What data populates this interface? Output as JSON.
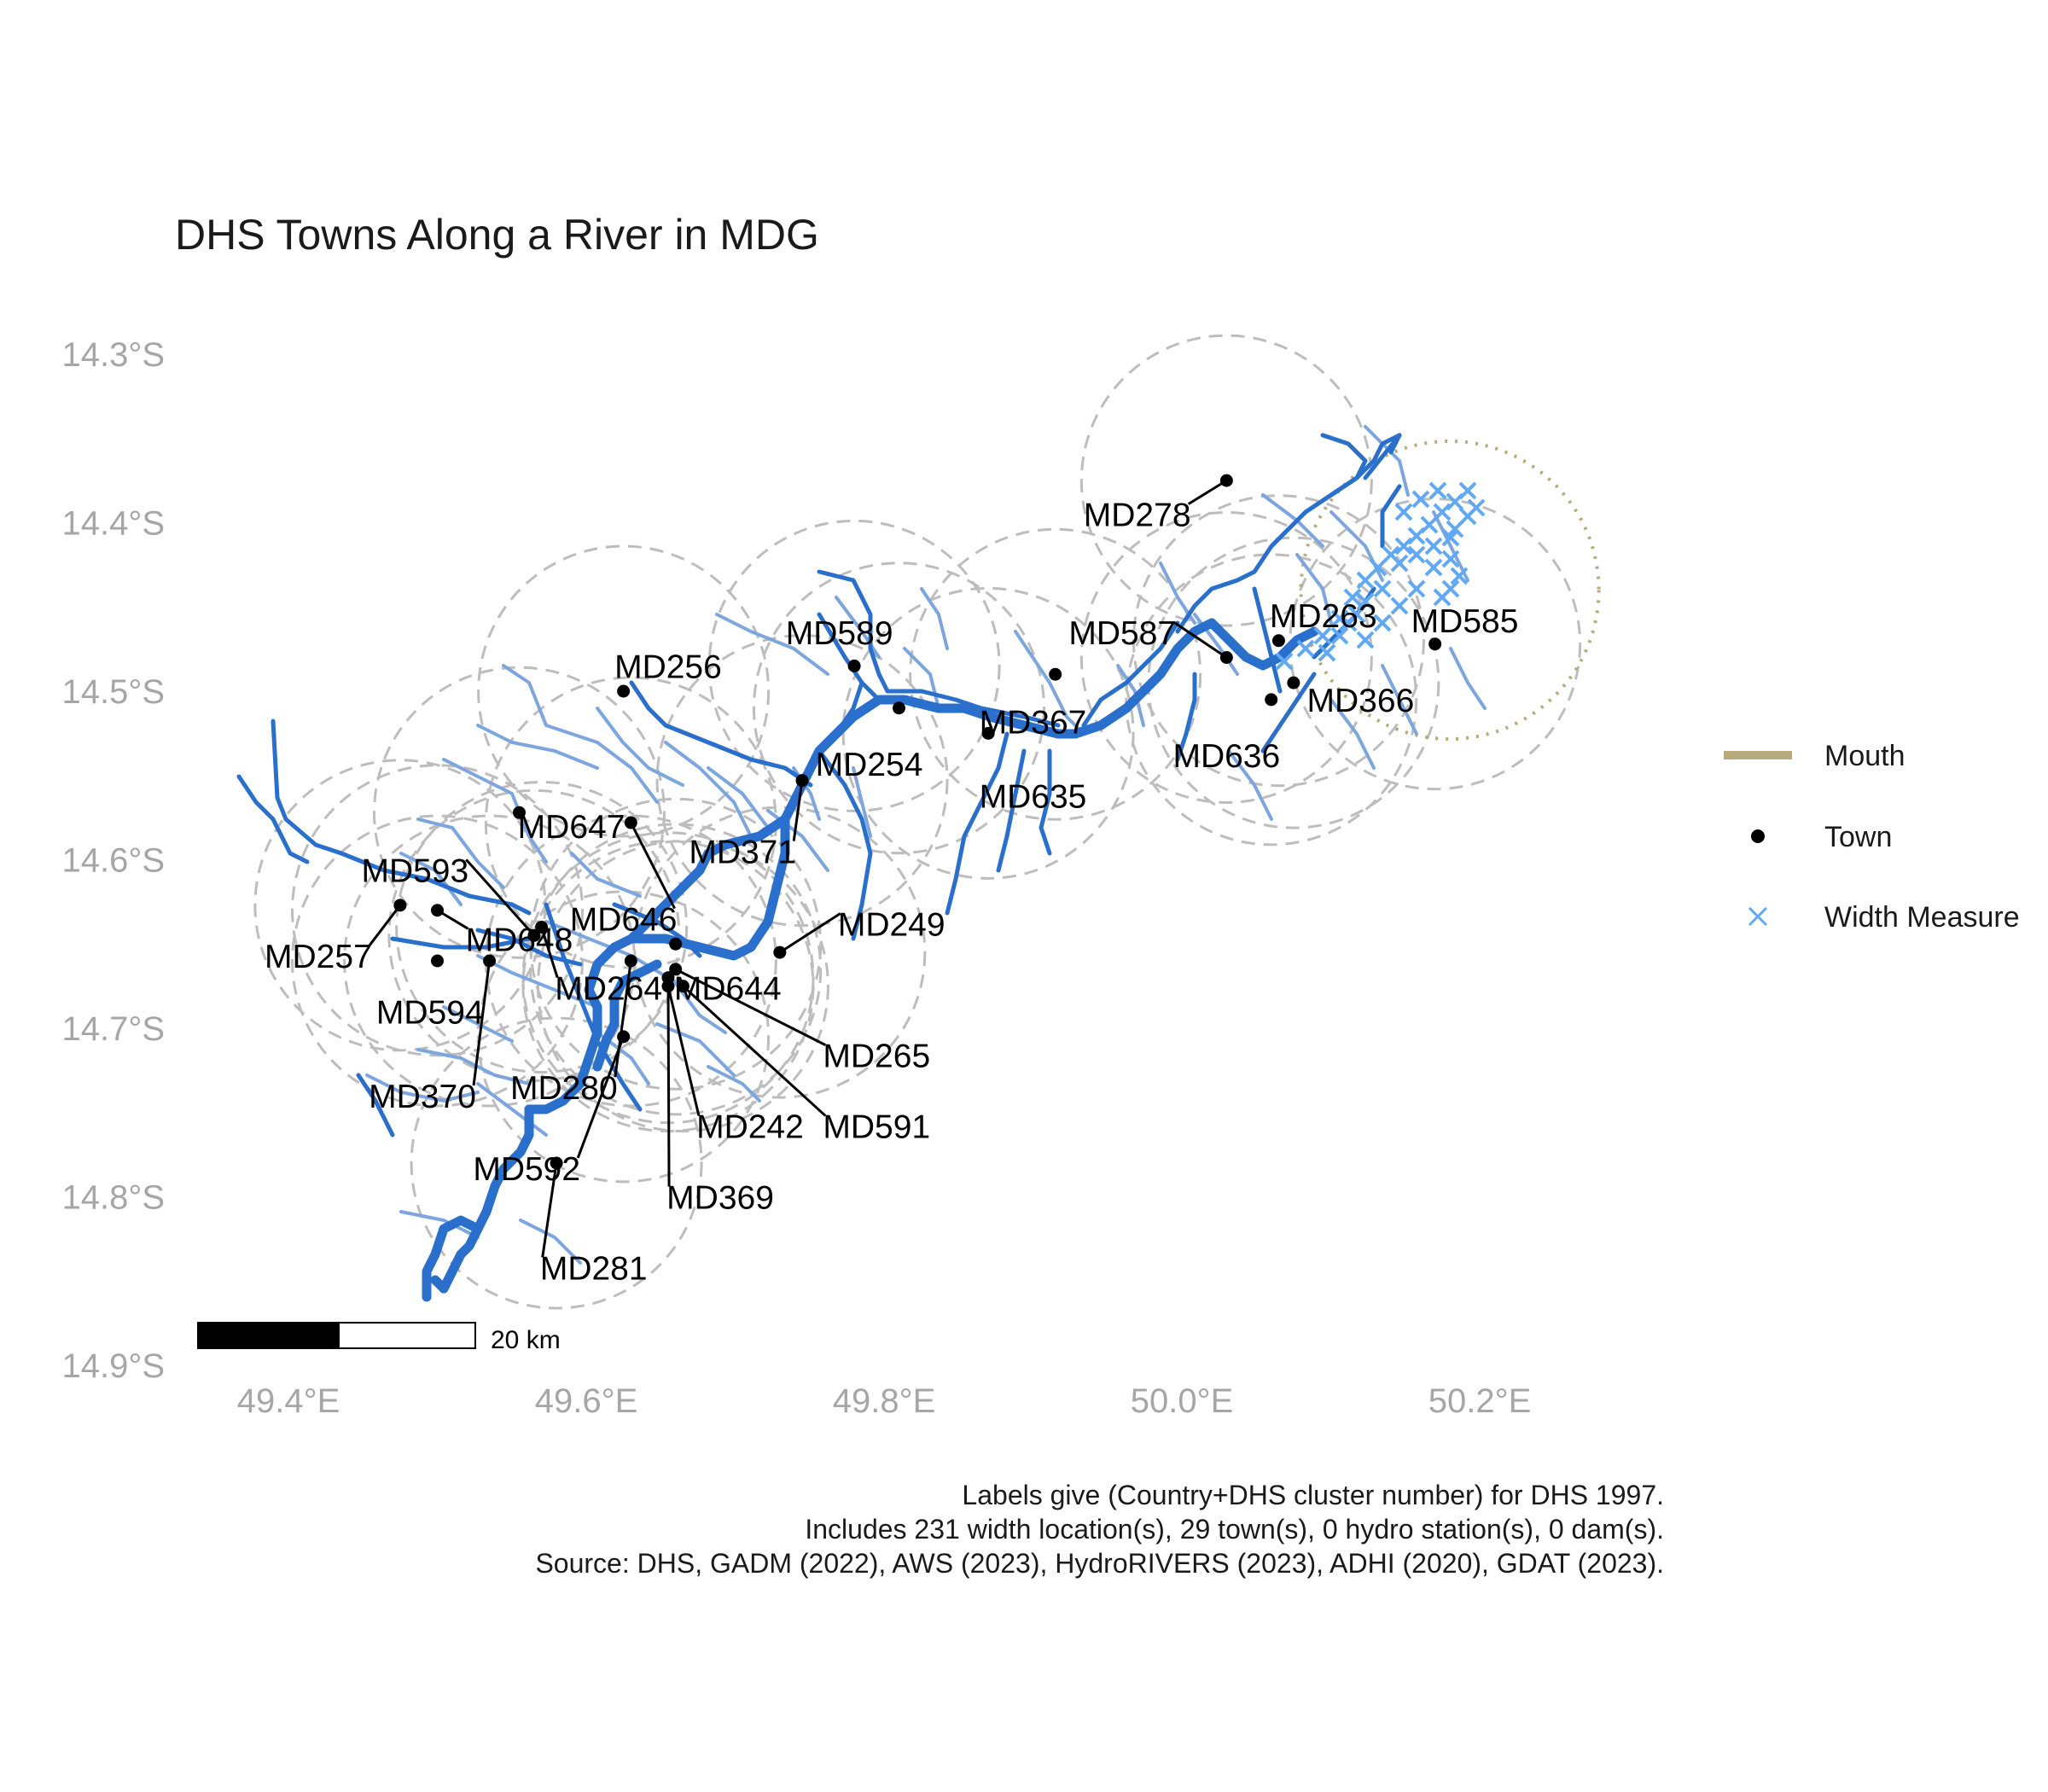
{
  "title": "DHS Towns Along a River in MDG",
  "axes": {
    "lat_ticks": [
      {
        "value": -14.3,
        "label": "14.3°S"
      },
      {
        "value": -14.4,
        "label": "14.4°S"
      },
      {
        "value": -14.5,
        "label": "14.5°S"
      },
      {
        "value": -14.6,
        "label": "14.6°S"
      },
      {
        "value": -14.7,
        "label": "14.7°S"
      },
      {
        "value": -14.8,
        "label": "14.8°S"
      },
      {
        "value": -14.9,
        "label": "14.9°S"
      }
    ],
    "lon_ticks": [
      {
        "value": 49.4,
        "label": "49.4°E"
      },
      {
        "value": 49.6,
        "label": "49.6°E"
      },
      {
        "value": 49.8,
        "label": "49.8°E"
      },
      {
        "value": 50.0,
        "label": "50.0°E"
      },
      {
        "value": 50.2,
        "label": "50.2°E"
      }
    ],
    "lon_range": [
      49.35,
      50.28
    ],
    "lat_range": [
      -14.9,
      -14.28
    ]
  },
  "legend": {
    "items": [
      {
        "key": "mouth",
        "label": "Mouth"
      },
      {
        "key": "town",
        "label": "Town"
      },
      {
        "key": "width",
        "label": "Width Measure"
      }
    ]
  },
  "scalebar": {
    "label": "20 km"
  },
  "caption": {
    "line1": "Labels give (Country+DHS cluster number) for DHS 1997.",
    "line2": "Includes 231 width location(s), 29 town(s), 0 hydro station(s), 0 dam(s).",
    "line3": "Source: DHS, GADM (2022), AWS (2023), HydroRIVERS (2023), ADHI (2020), GDAT (2023)."
  },
  "colors": {
    "river_main": "#2a6fcc",
    "river_trib": "#7ea6de",
    "width_measure": "#61a8f5",
    "mouth": "#b8aa7a",
    "buffer": "#bdbdbd",
    "town": "#000000"
  },
  "mouth": {
    "lon": 50.18,
    "lat": -14.44,
    "radius_deg": 0.1
  },
  "towns": [
    {
      "name": "MD278",
      "lon": 50.03,
      "lat": -14.375,
      "label_lon": 49.97,
      "label_lat": -14.395
    },
    {
      "name": "MD587",
      "lon": 50.03,
      "lat": -14.48,
      "label_lon": 49.96,
      "label_lat": -14.465
    },
    {
      "name": "MD263",
      "lon": 50.065,
      "lat": -14.47,
      "label_lon": 50.095,
      "label_lat": -14.455
    },
    {
      "name": "MD585",
      "lon": 50.17,
      "lat": -14.472,
      "label_lon": 50.19,
      "label_lat": -14.458
    },
    {
      "name": "MD366",
      "lon": 50.075,
      "lat": -14.495,
      "label_lon": 50.12,
      "label_lat": -14.505
    },
    {
      "name": "MD636",
      "lon": 50.06,
      "lat": -14.505,
      "label_lon": 50.03,
      "label_lat": -14.538
    },
    {
      "name": "MD589",
      "lon": 49.78,
      "lat": -14.485,
      "label_lon": 49.77,
      "label_lat": -14.465
    },
    {
      "name": "MD256",
      "lon": 49.625,
      "lat": -14.5,
      "label_lon": 49.655,
      "label_lat": -14.485
    },
    {
      "name": "MD367",
      "lon": 49.915,
      "lat": -14.49,
      "label_lon": 49.9,
      "label_lat": -14.518
    },
    {
      "name": "MD254",
      "lon": 49.81,
      "lat": -14.51,
      "label_lon": 49.79,
      "label_lat": -14.543
    },
    {
      "name": "MD635",
      "lon": 49.87,
      "lat": -14.525,
      "label_lon": 49.9,
      "label_lat": -14.562
    },
    {
      "name": "MD647",
      "lon": 49.555,
      "lat": -14.572,
      "label_lon": 49.59,
      "label_lat": -14.58
    },
    {
      "name": "MD371",
      "lon": 49.745,
      "lat": -14.553,
      "label_lon": 49.705,
      "label_lat": -14.595
    },
    {
      "name": "MD593",
      "lon": 49.565,
      "lat": -14.645,
      "label_lon": 49.485,
      "label_lat": -14.606
    },
    {
      "name": "MD646",
      "lon": 49.63,
      "lat": -14.578,
      "label_lon": 49.625,
      "label_lat": -14.635
    },
    {
      "name": "MD249",
      "lon": 49.73,
      "lat": -14.655,
      "label_lon": 49.805,
      "label_lat": -14.638
    },
    {
      "name": "MD257",
      "lon": 49.475,
      "lat": -14.627,
      "label_lon": 49.42,
      "label_lat": -14.657
    },
    {
      "name": "MD648",
      "lon": 49.5,
      "lat": -14.63,
      "label_lon": 49.555,
      "label_lat": -14.647
    },
    {
      "name": "MD264",
      "lon": 49.57,
      "lat": -14.64,
      "label_lon": 49.615,
      "label_lat": -14.676
    },
    {
      "name": "MD644",
      "lon": 49.66,
      "lat": -14.65,
      "label_lon": 49.695,
      "label_lat": -14.676
    },
    {
      "name": "MD594",
      "lon": 49.5,
      "lat": -14.66,
      "label_lon": 49.495,
      "label_lat": -14.69
    },
    {
      "name": "MD265",
      "lon": 49.66,
      "lat": -14.665,
      "label_lon": 49.795,
      "label_lat": -14.716
    },
    {
      "name": "MD370",
      "lon": 49.535,
      "lat": -14.66,
      "label_lon": 49.49,
      "label_lat": -14.74
    },
    {
      "name": "MD280",
      "lon": 49.63,
      "lat": -14.66,
      "label_lon": 49.585,
      "label_lat": -14.735
    },
    {
      "name": "MD242",
      "lon": 49.655,
      "lat": -14.675,
      "label_lon": 49.71,
      "label_lat": -14.758
    },
    {
      "name": "MD591",
      "lon": 49.665,
      "lat": -14.675,
      "label_lon": 49.795,
      "label_lat": -14.758
    },
    {
      "name": "MD592",
      "lon": 49.625,
      "lat": -14.705,
      "label_lon": 49.56,
      "label_lat": -14.783
    },
    {
      "name": "MD369",
      "lon": 49.655,
      "lat": -14.67,
      "label_lon": 49.69,
      "label_lat": -14.8
    },
    {
      "name": "MD281",
      "lon": 49.58,
      "lat": -14.78,
      "label_lon": 49.605,
      "label_lat": -14.842
    }
  ]
}
